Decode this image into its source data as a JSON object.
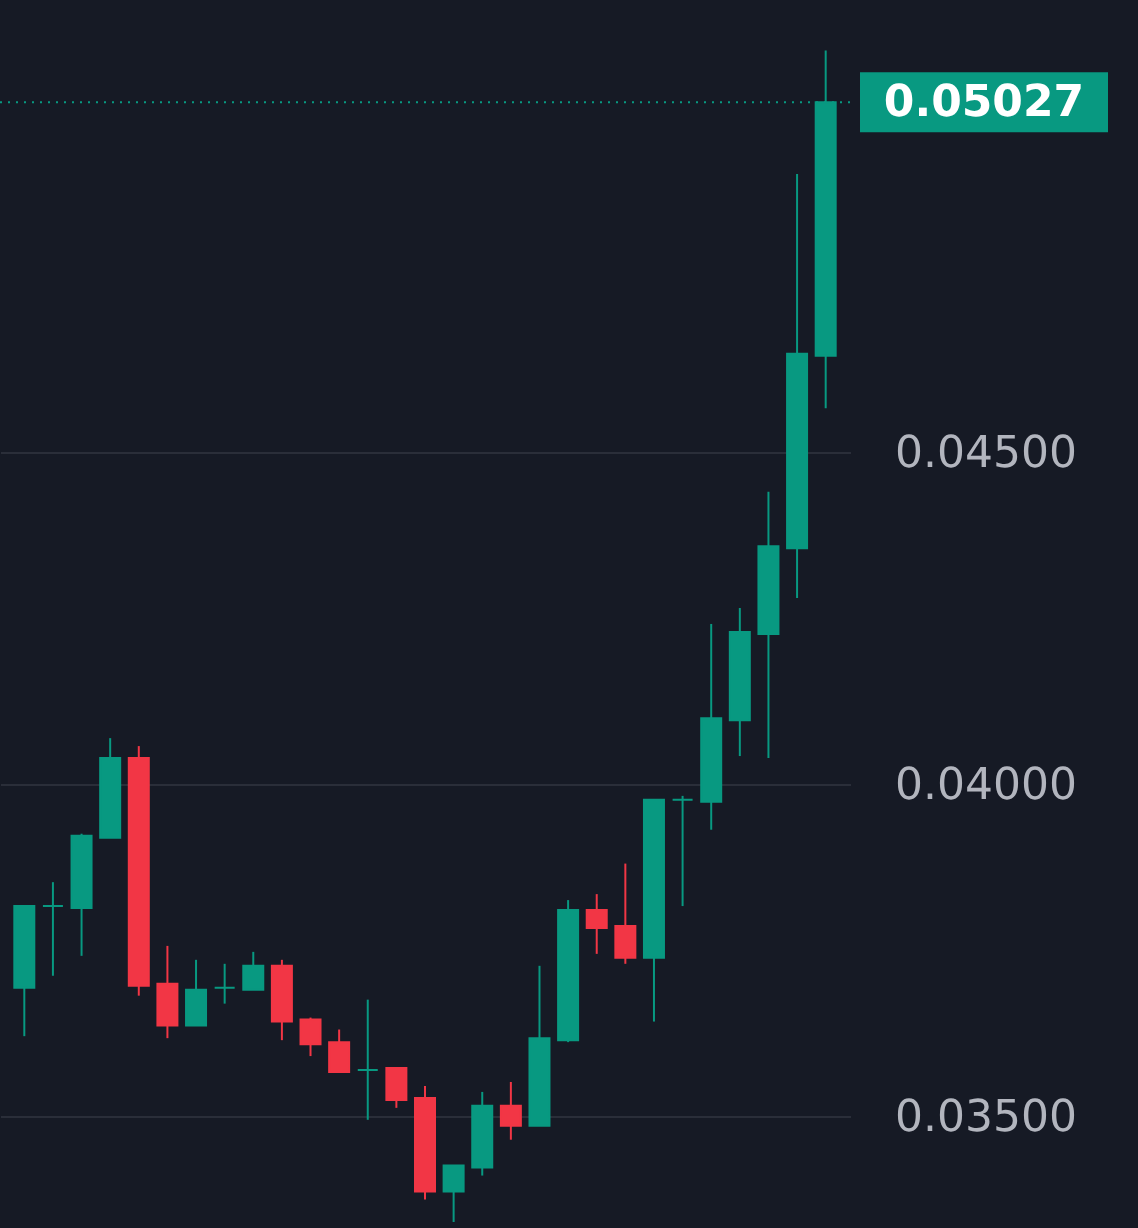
{
  "chart_data": {
    "type": "candlestick",
    "categories": [
      null,
      null,
      null,
      null,
      null,
      null,
      null,
      null,
      null,
      null,
      null,
      null,
      null,
      null,
      null,
      null,
      null,
      null,
      null,
      null,
      null,
      null,
      null,
      null,
      null,
      null,
      null,
      null,
      null
    ],
    "ohlc": [
      [
        0.03693,
        0.03816,
        0.0362,
        0.03816
      ],
      [
        0.03816,
        0.03852,
        0.03711,
        0.03816
      ],
      [
        0.03813,
        0.03925,
        0.03741,
        0.03922
      ],
      [
        0.03919,
        0.04069,
        0.03919,
        0.04039
      ],
      [
        0.04039,
        0.04057,
        0.03681,
        0.03696
      ],
      [
        0.03699,
        0.03756,
        0.03617,
        0.03636
      ],
      [
        0.03636,
        0.03735,
        0.03636,
        0.0369
      ],
      [
        0.03693,
        0.03729,
        0.03669,
        0.03693
      ],
      [
        0.0369,
        0.03747,
        0.0369,
        0.03726
      ],
      [
        0.03726,
        0.03735,
        0.03614,
        0.03642
      ],
      [
        0.03645,
        0.03648,
        0.0359,
        0.03608
      ],
      [
        0.03611,
        0.0363,
        0.03566,
        0.03566
      ],
      [
        0.03569,
        0.03675,
        0.03494,
        0.03569
      ],
      [
        0.03572,
        0.03572,
        0.03512,
        0.03524
      ],
      [
        0.03527,
        0.03545,
        0.03374,
        0.03386
      ],
      [
        0.03386,
        0.03425,
        0.0334,
        0.03425
      ],
      [
        0.03422,
        0.03536,
        0.0341,
        0.03515
      ],
      [
        0.03515,
        0.03551,
        0.03464,
        0.03485
      ],
      [
        0.03485,
        0.03726,
        0.03485,
        0.03617
      ],
      [
        0.03614,
        0.03825,
        0.03611,
        0.0381
      ],
      [
        0.0381,
        0.03834,
        0.03744,
        0.03783
      ],
      [
        0.03786,
        0.0388,
        0.03729,
        0.03738
      ],
      [
        0.03738,
        0.03976,
        0.03642,
        0.03976
      ],
      [
        0.03976,
        0.03982,
        0.03816,
        0.03976
      ],
      [
        0.03973,
        0.04241,
        0.03931,
        0.04099
      ],
      [
        0.04096,
        0.04265,
        0.04042,
        0.04229
      ],
      [
        0.04226,
        0.0444,
        0.04039,
        0.04358
      ],
      [
        0.04355,
        0.04919,
        0.0428,
        0.04648
      ],
      [
        0.04645,
        0.05105,
        0.04566,
        0.05027
      ]
    ],
    "colors": [
      "#089981",
      "#089981",
      "#089981",
      "#089981",
      "#f23645",
      "#f23645",
      "#089981",
      "#089981",
      "#089981",
      "#f23645",
      "#f23645",
      "#f23645",
      "#089981",
      "#f23645",
      "#f23645",
      "#089981",
      "#089981",
      "#f23645",
      "#089981",
      "#089981",
      "#f23645",
      "#f23645",
      "#089981",
      "#089981",
      "#089981",
      "#089981",
      "#089981",
      "#089981",
      "#089981"
    ],
    "ylim": [
      0.03331,
      0.05181
    ],
    "yticks": [
      {
        "value": 0.035,
        "label": "0.03500"
      },
      {
        "value": 0.04,
        "label": "0.04000"
      },
      {
        "value": 0.045,
        "label": "0.04500"
      }
    ],
    "grid": "y",
    "ref_lines": [
      {
        "axis": "y",
        "value": 0.05027,
        "label": "0.05027",
        "color": "#089981",
        "line_style": "dotted"
      }
    ]
  }
}
